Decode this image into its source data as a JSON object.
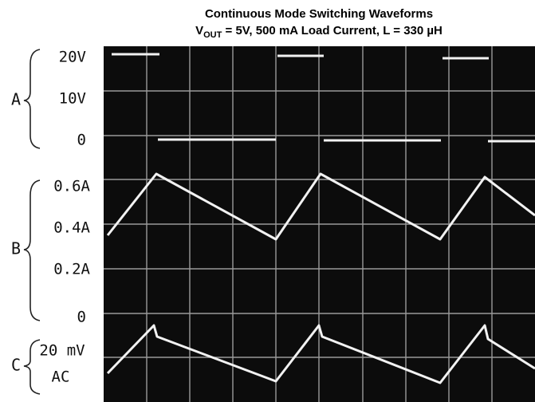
{
  "header": {
    "title": "Continuous Mode Switching Waveforms",
    "subtitle": {
      "prefix": "V",
      "subscript": "OUT",
      "rest": " = 5V, 500 mA Load Current, L = 330 µH"
    }
  },
  "channels": [
    {
      "name": "A",
      "labels": [
        "20V",
        "10V",
        "0"
      ]
    },
    {
      "name": "B",
      "labels": [
        "0.6A",
        "0.4A",
        "0.2A",
        "0"
      ]
    },
    {
      "name": "C",
      "labels": [
        "20 mV",
        "AC"
      ]
    }
  ]
}
